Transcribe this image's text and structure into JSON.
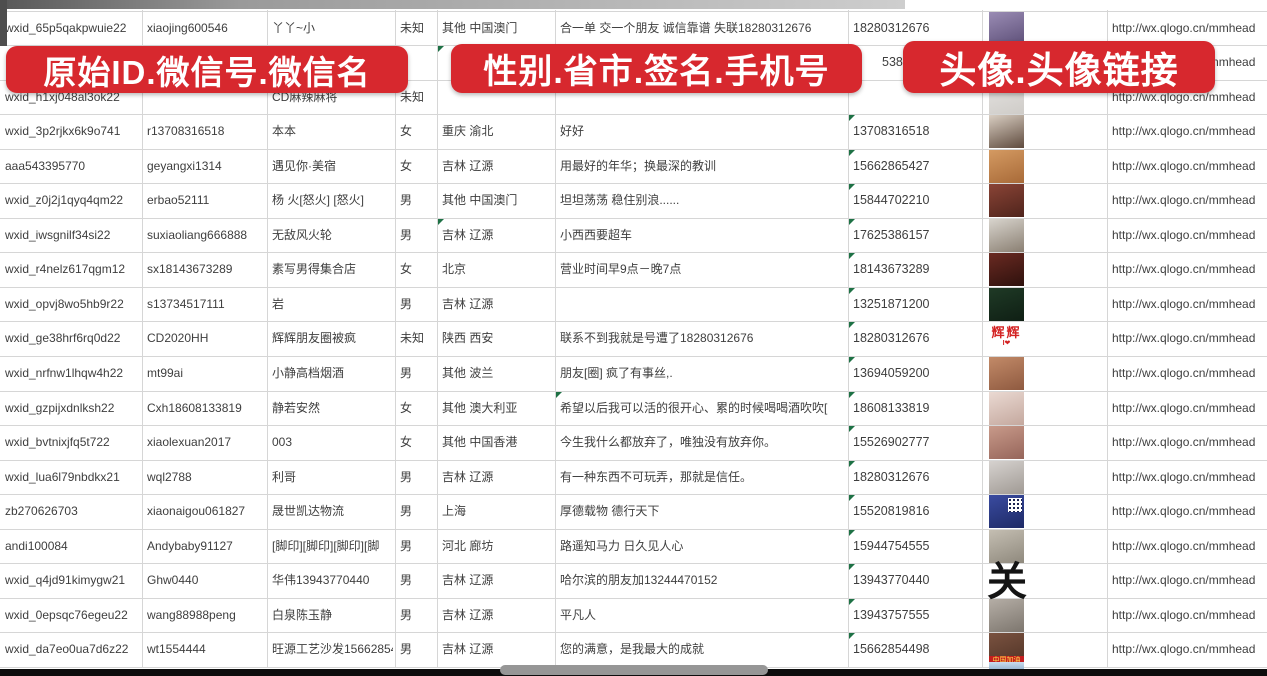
{
  "banners": {
    "left": "原始ID.微信号.微信名",
    "middle": "性别.省市.签名.手机号",
    "right": "头像.头像链接"
  },
  "colors": {
    "banner_red": "#d7282e",
    "grid_line": "#d6d6d6",
    "cell_text": "#3e3e3e",
    "error_mark_green": "#1e7145"
  },
  "rows": [
    {
      "wxid": "wxid_65p5qakpwuie22",
      "wx_no": "xiaojing600546",
      "nickname": "丫丫~小",
      "gender": "未知",
      "region": "其他 中国澳门",
      "signature": "合一单 交一个朋友 诚信靠谱 失联18280312676",
      "phone": "18280312676",
      "phone_partial": false,
      "phone_mark": false,
      "region_mark": false,
      "sig_mark": false,
      "link": "http://wx.qlogo.cn/mmhead",
      "avatar": {
        "kind": "photo",
        "desc": "girl-portrait-purple",
        "c1": "#9a8cb4",
        "c2": "#5d4f78"
      }
    },
    {
      "wxid": "",
      "wx_no": "",
      "nickname": "",
      "gender": "",
      "region": "",
      "signature": "",
      "phone": "5386",
      "phone_partial": true,
      "phone_mark": false,
      "region_mark": true,
      "sig_mark": false,
      "link": "http://wx.qlogo.cn/mmhead",
      "avatar": {
        "kind": "photo",
        "desc": "hidden-behind-banner",
        "c1": "#cfc3d6",
        "c2": "#b3a6c4"
      }
    },
    {
      "wxid": "wxid_h1xj048al3ok22",
      "wx_no": "",
      "nickname": "CD麻辣麻将",
      "gender": "未知",
      "region": "",
      "signature": "",
      "phone": "",
      "phone_partial": false,
      "phone_mark": true,
      "region_mark": false,
      "sig_mark": false,
      "link": "http://wx.qlogo.cn/mmhead",
      "avatar": {
        "kind": "photo",
        "desc": "pale-photo",
        "c1": "#e4e2e0",
        "c2": "#cfccc8"
      }
    },
    {
      "wxid": "wxid_3p2rjkx6k9o741",
      "wx_no": "r13708316518",
      "nickname": "本本",
      "gender": "女",
      "region": "重庆 渝北",
      "signature": "好好",
      "phone": "13708316518",
      "phone_partial": false,
      "phone_mark": true,
      "region_mark": false,
      "sig_mark": false,
      "link": "http://wx.qlogo.cn/mmhead",
      "avatar": {
        "kind": "photo",
        "desc": "girl-long-dark-hair",
        "c1": "#d9cec2",
        "c2": "#5f4b3e"
      }
    },
    {
      "wxid": "aaa543395770",
      "wx_no": "geyangxi1314",
      "nickname": "遇见你·美宿",
      "gender": "女",
      "region": "吉林 辽源",
      "signature": "用最好的年华；换最深的教训",
      "phone": "15662865427",
      "phone_partial": false,
      "phone_mark": true,
      "region_mark": false,
      "sig_mark": false,
      "link": "http://wx.qlogo.cn/mmhead",
      "avatar": {
        "kind": "photo",
        "desc": "warm-orange-photo",
        "c1": "#d49a62",
        "c2": "#a86a38"
      }
    },
    {
      "wxid": "wxid_z0j2j1qyq4qm22",
      "wx_no": "erbao52111",
      "nickname": "杨 火[怒火] [怒火]",
      "gender": "男",
      "region": "其他 中国澳门",
      "signature": "坦坦荡荡 稳住别浪......",
      "phone": "15844702210",
      "phone_partial": false,
      "phone_mark": true,
      "region_mark": false,
      "sig_mark": false,
      "link": "http://wx.qlogo.cn/mmhead",
      "avatar": {
        "kind": "photo",
        "desc": "group-dinner-photo",
        "c1": "#8a4436",
        "c2": "#4f241c"
      }
    },
    {
      "wxid": "wxid_iwsgnilf34si22",
      "wx_no": "suxiaoliang666888",
      "nickname": "无敌风火轮",
      "gender": "男",
      "region": "吉林 辽源",
      "signature": "小西西要超车",
      "phone": "17625386157",
      "phone_partial": false,
      "phone_mark": true,
      "region_mark": true,
      "sig_mark": false,
      "link": "http://wx.qlogo.cn/mmhead",
      "avatar": {
        "kind": "photo",
        "desc": "boy-in-car",
        "c1": "#d8d4cd",
        "c2": "#8a7f72"
      }
    },
    {
      "wxid": "wxid_r4nelz617qgm12",
      "wx_no": "sx18143673289",
      "nickname": "素写男得集合店",
      "gender": "女",
      "region": "北京",
      "signature": "营业时间早9点－晚7点",
      "phone": "18143673289",
      "phone_partial": false,
      "phone_mark": true,
      "region_mark": false,
      "sig_mark": false,
      "link": "http://wx.qlogo.cn/mmhead",
      "avatar": {
        "kind": "photo",
        "desc": "dark-storefront",
        "c1": "#6a2a22",
        "c2": "#2e110d"
      }
    },
    {
      "wxid": "wxid_opvj8wo5hb9r22",
      "wx_no": "s13734517111",
      "nickname": "岩",
      "gender": "男",
      "region": "吉林 辽源",
      "signature": "",
      "phone": "13251871200",
      "phone_partial": false,
      "phone_mark": true,
      "region_mark": false,
      "sig_mark": false,
      "link": "http://wx.qlogo.cn/mmhead",
      "avatar": {
        "kind": "photo",
        "desc": "dark-green-logo",
        "c1": "#1f3a26",
        "c2": "#0f1f14"
      }
    },
    {
      "wxid": "wxid_ge38hrf6rq0d22",
      "wx_no": "CD2020HH",
      "nickname": "辉辉朋友圈被疯",
      "gender": "未知",
      "region": "陕西 西安",
      "signature": "联系不到我就是号遭了18280312676",
      "phone": "18280312676",
      "phone_partial": false,
      "phone_mark": true,
      "region_mark": false,
      "sig_mark": false,
      "link": "http://wx.qlogo.cn/mmhead",
      "avatar": {
        "kind": "text",
        "desc": "white-avatar-red-text",
        "text": "辉辉",
        "sub": "I❤",
        "text_color": "#d32222"
      }
    },
    {
      "wxid": "wxid_nrfnw1lhqw4h22",
      "wx_no": "mt99ai",
      "nickname": "小静高档烟酒",
      "gender": "男",
      "region": "其他 波兰",
      "signature": "朋友[圈] 疯了有事丝,.",
      "phone": "13694059200",
      "phone_partial": false,
      "phone_mark": true,
      "region_mark": false,
      "sig_mark": false,
      "link": "http://wx.qlogo.cn/mmhead",
      "avatar": {
        "kind": "photo",
        "desc": "woman-sunglasses",
        "c1": "#c28a68",
        "c2": "#8f5a40"
      }
    },
    {
      "wxid": "wxid_gzpijxdnlksh22",
      "wx_no": "Cxh18608133819",
      "nickname": "静若安然",
      "gender": "女",
      "region": "其他 澳大利亚",
      "signature": "希望以后我可以活的很开心、累的时候喝喝酒吹吹[",
      "phone": "18608133819",
      "phone_partial": false,
      "phone_mark": true,
      "region_mark": false,
      "sig_mark": true,
      "link": "http://wx.qlogo.cn/mmhead",
      "avatar": {
        "kind": "photo",
        "desc": "pale-selfie",
        "c1": "#ead9d2",
        "c2": "#c4a89e"
      }
    },
    {
      "wxid": "wxid_bvtnixjfq5t722",
      "wx_no": "xiaolexuan2017",
      "nickname": "003",
      "gender": "女",
      "region": "其他 中国香港",
      "signature": "今生我什么都放弃了，唯独没有放弃你。",
      "phone": "15526902777",
      "phone_partial": false,
      "phone_mark": true,
      "region_mark": false,
      "sig_mark": false,
      "link": "http://wx.qlogo.cn/mmhead",
      "avatar": {
        "kind": "photo",
        "desc": "woman-red-hair",
        "c1": "#c89a8a",
        "c2": "#96655a"
      }
    },
    {
      "wxid": "wxid_lua6l79nbdkx21",
      "wx_no": "wql2788",
      "nickname": "利哥",
      "gender": "男",
      "region": "吉林 辽源",
      "signature": "有一种东西不可玩弄，那就是信任。",
      "phone": "18280312676",
      "phone_partial": false,
      "phone_mark": true,
      "region_mark": false,
      "sig_mark": false,
      "link": "http://wx.qlogo.cn/mmhead",
      "avatar": {
        "kind": "photo",
        "desc": "light-gray-person",
        "c1": "#d6d2cf",
        "c2": "#a09a94"
      }
    },
    {
      "wxid": "zb270626703",
      "wx_no": "xiaonaigou061827",
      "nickname": "晟世凯达物流",
      "gender": "男",
      "region": "上海",
      "signature": "厚德载物 德行天下",
      "phone": "15520819816",
      "phone_partial": false,
      "phone_mark": true,
      "region_mark": false,
      "sig_mark": false,
      "link": "http://wx.qlogo.cn/mmhead",
      "avatar": {
        "kind": "qr",
        "desc": "blue-qr-code",
        "c1": "#3a4ba0",
        "c2": "#1e2a66"
      }
    },
    {
      "wxid": "andi100084",
      "wx_no": "Andybaby91127",
      "nickname": "[脚印][脚印][脚印][脚",
      "gender": "男",
      "region": "河北 廊坊",
      "signature": "路遥知马力 日久见人心",
      "phone": "15944754555",
      "phone_partial": false,
      "phone_mark": true,
      "region_mark": false,
      "sig_mark": false,
      "link": "http://wx.qlogo.cn/mmhead",
      "avatar": {
        "kind": "photo",
        "desc": "gray-beach-photo",
        "c1": "#c4beb2",
        "c2": "#8f897d"
      }
    },
    {
      "wxid": "wxid_q4jd91kimygw21",
      "wx_no": "Ghw0440",
      "nickname": "华伟13943770440",
      "gender": "男",
      "region": "吉林 辽源",
      "signature": "哈尔滨的朋友加13244470152",
      "phone": "13943770440",
      "phone_partial": false,
      "phone_mark": true,
      "region_mark": false,
      "sig_mark": false,
      "link": "http://wx.qlogo.cn/mmhead",
      "avatar": {
        "kind": "glyph",
        "desc": "black-calligraphy-guan",
        "text": "关",
        "text_color": "#141414"
      }
    },
    {
      "wxid": "wxid_0epsqc76egeu22",
      "wx_no": "wang88988peng",
      "nickname": "白泉陈玉静",
      "gender": "男",
      "region": "吉林 辽源",
      "signature": "平凡人",
      "phone": "13943757555",
      "phone_partial": false,
      "phone_mark": true,
      "region_mark": false,
      "sig_mark": false,
      "link": "http://wx.qlogo.cn/mmhead",
      "avatar": {
        "kind": "photo",
        "desc": "gray-portrait",
        "c1": "#b5aea6",
        "c2": "#7d766e"
      }
    },
    {
      "wxid": "wxid_da7eo0ua7d6z22",
      "wx_no": "wt1554444",
      "nickname": "旺源工艺沙发15662854",
      "gender": "男",
      "region": "吉林 辽源",
      "signature": "您的满意，是我最大的成就",
      "phone": "15662854498",
      "phone_partial": false,
      "phone_mark": true,
      "region_mark": false,
      "sig_mark": false,
      "link": "http://wx.qlogo.cn/mmhead",
      "avatar": {
        "kind": "banner",
        "desc": "brown-photo-china-jiayou",
        "c1": "#7a5240",
        "c2": "#4f3326",
        "strip_text": "中国加油",
        "strip_color": "#c41e1e"
      }
    }
  ]
}
